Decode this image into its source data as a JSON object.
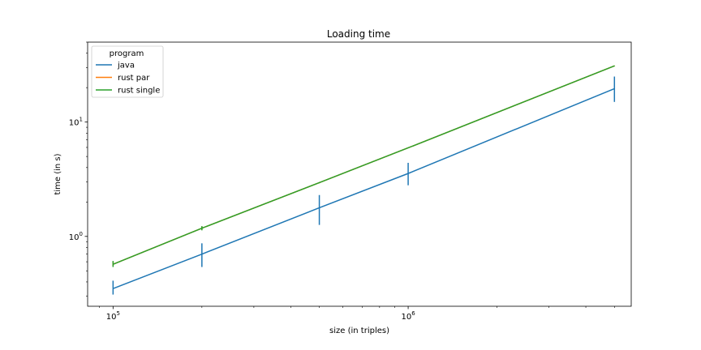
{
  "chart_data": {
    "type": "line",
    "title": "Loading time",
    "xlabel": "size (in triples)",
    "ylabel": "time (in s)",
    "xscale": "log",
    "yscale": "log",
    "xlim": [
      82000,
      5700000
    ],
    "ylim": [
      0.245,
      50
    ],
    "x": [
      100000,
      200000,
      500000,
      1000000,
      5000000
    ],
    "x_tick_labels": [
      {
        "value": 100000,
        "base": "10",
        "exp": "5"
      },
      {
        "value": 1000000,
        "base": "10",
        "exp": "6"
      }
    ],
    "y_tick_labels": [
      {
        "value": 1,
        "base": "10",
        "exp": "0"
      },
      {
        "value": 10,
        "base": "10",
        "exp": "1"
      }
    ],
    "series": [
      {
        "name": "java",
        "color": "#1f77b4",
        "values": [
          0.35,
          0.7,
          1.78,
          3.55,
          19.6
        ],
        "err_low": [
          0.31,
          0.54,
          1.26,
          2.8,
          15.0
        ],
        "err_high": [
          0.41,
          0.87,
          2.3,
          4.4,
          25.0
        ]
      },
      {
        "name": "rust par",
        "color": "#ff7f0e",
        "values": [
          0.57,
          1.18,
          2.95,
          5.95,
          31.0
        ],
        "err_low": [
          0.55,
          1.14,
          2.92,
          5.9,
          30.8
        ],
        "err_high": [
          0.6,
          1.22,
          2.98,
          6.0,
          31.2
        ]
      },
      {
        "name": "rust single",
        "color": "#2ca02c",
        "values": [
          0.57,
          1.18,
          2.95,
          5.95,
          31.0
        ],
        "err_low": [
          0.54,
          1.13,
          2.92,
          5.9,
          30.8
        ],
        "err_high": [
          0.61,
          1.23,
          2.98,
          6.0,
          31.2
        ]
      }
    ],
    "legend": {
      "title": "program",
      "location": "upper left"
    },
    "grid": false
  }
}
